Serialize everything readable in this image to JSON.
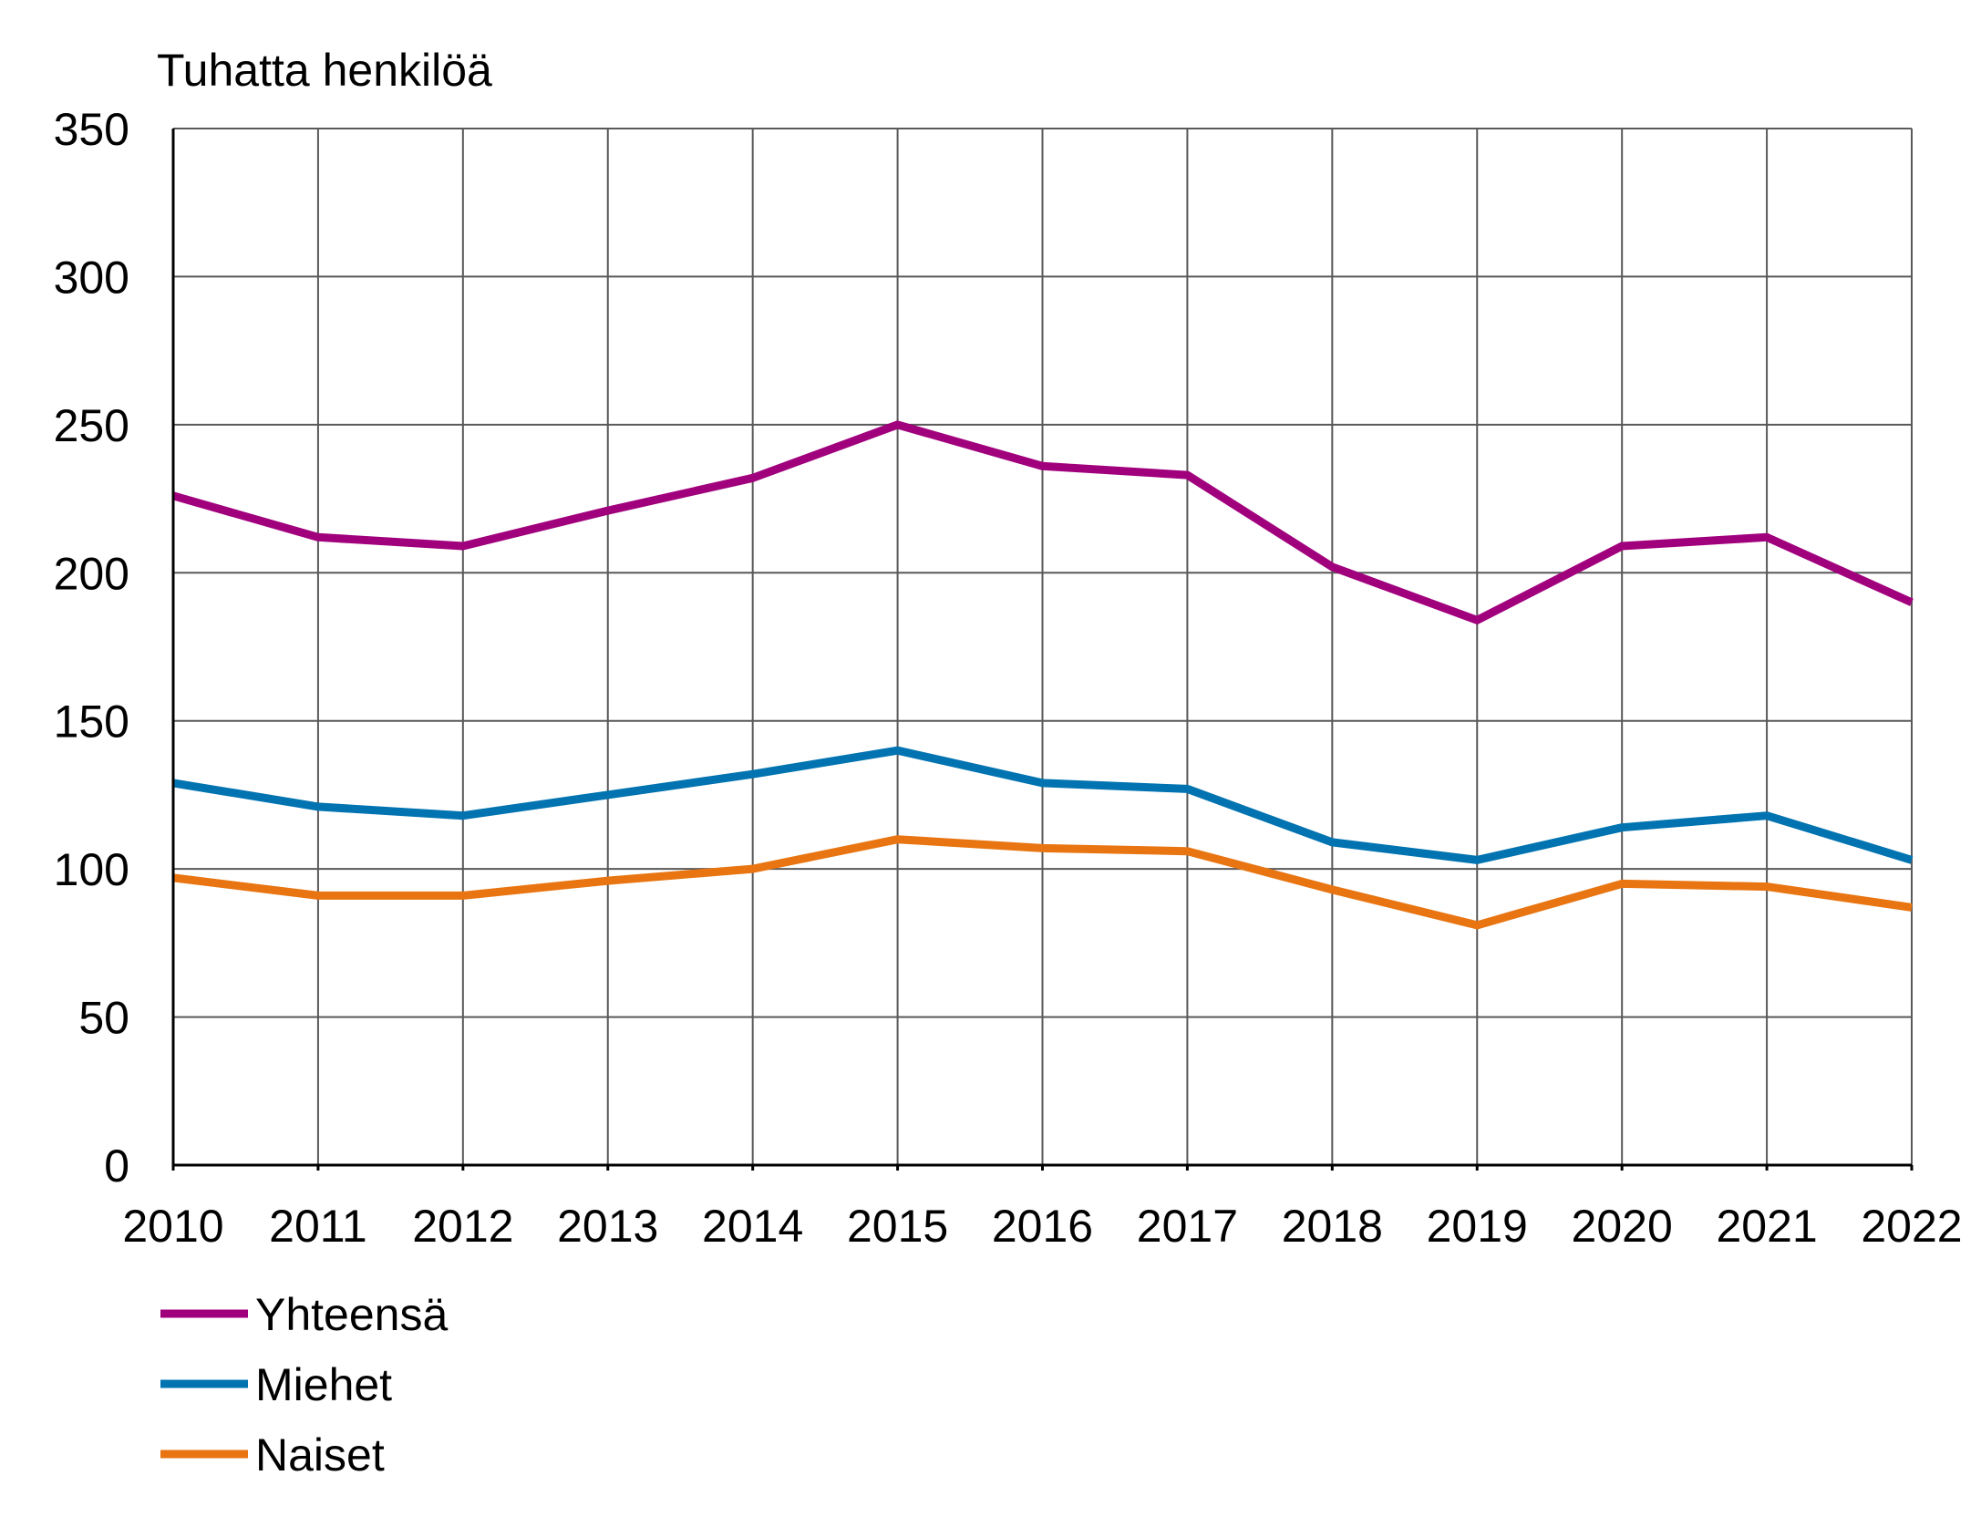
{
  "chart_data": {
    "type": "line",
    "ylabel": "Tuhatta henkilöä",
    "xlabel": "",
    "ylim": [
      0,
      350
    ],
    "yticks": [
      0,
      50,
      100,
      150,
      200,
      250,
      300,
      350
    ],
    "x": [
      "2010",
      "2011",
      "2012",
      "2013",
      "2014",
      "2015",
      "2016",
      "2017",
      "2018",
      "2019",
      "2020",
      "2021",
      "2022"
    ],
    "grid": true,
    "legend_position": "bottom-left",
    "series": [
      {
        "name": "Yhteensä",
        "color": "#a1007d",
        "values": [
          226,
          212,
          209,
          221,
          232,
          250,
          236,
          233,
          202,
          184,
          209,
          212,
          190
        ]
      },
      {
        "name": "Miehet",
        "color": "#0073b0",
        "values": [
          129,
          121,
          118,
          125,
          132,
          140,
          129,
          127,
          109,
          103,
          114,
          118,
          103
        ]
      },
      {
        "name": "Naiset",
        "color": "#e87511",
        "values": [
          97,
          91,
          91,
          96,
          100,
          110,
          107,
          106,
          93,
          81,
          95,
          94,
          87
        ]
      }
    ]
  }
}
